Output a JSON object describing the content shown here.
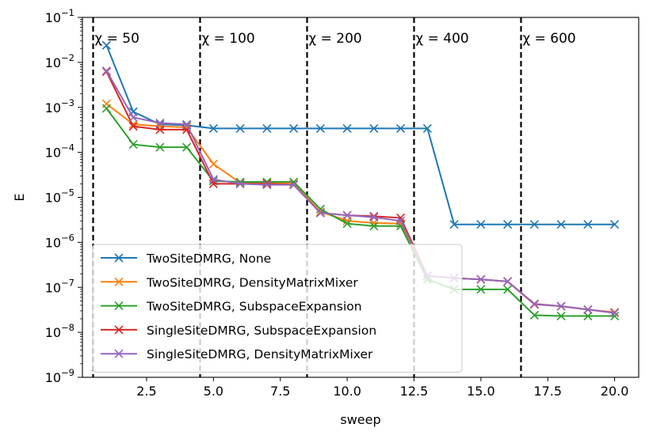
{
  "chart_data": {
    "type": "line",
    "xlabel": "sweep",
    "ylabel": "E",
    "yscale": "log",
    "xlim": [
      0.1,
      20.9
    ],
    "ylim": [
      1e-09,
      0.1
    ],
    "xticks": [
      2.5,
      5.0,
      7.5,
      10.0,
      12.5,
      15.0,
      17.5,
      20.0
    ],
    "xtick_labels": [
      "2.5",
      "5.0",
      "7.5",
      "10.0",
      "12.5",
      "15.0",
      "17.5",
      "20.0"
    ],
    "yticks": [
      1e-09,
      1e-08,
      1e-07,
      1e-06,
      1e-05,
      0.0001,
      0.001,
      0.01,
      0.1
    ],
    "ytick_exponents": [
      "−9",
      "−8",
      "−7",
      "−6",
      "−5",
      "−4",
      "−3",
      "−2",
      "−1"
    ],
    "ytick_base": "10",
    "grid": false,
    "legend_position": "lower-left",
    "vlines": [
      0.5,
      4.5,
      8.5,
      12.5,
      16.5
    ],
    "annotations": [
      {
        "text": "χ = 50",
        "x": 1.0
      },
      {
        "text": "χ = 100",
        "x": 5.0
      },
      {
        "text": "χ = 200",
        "x": 9.0
      },
      {
        "text": "χ = 400",
        "x": 13.0
      },
      {
        "text": "χ = 600",
        "x": 17.0
      }
    ],
    "x": [
      1,
      2,
      3,
      4,
      5,
      6,
      7,
      8,
      9,
      10,
      11,
      12,
      13,
      14,
      15,
      16,
      17,
      18,
      19,
      20
    ],
    "series": [
      {
        "name": "TwoSiteDMRG, None",
        "color": "#1f77b4",
        "values": [
          0.024,
          0.0008,
          0.00042,
          0.0004,
          0.00034,
          0.00034,
          0.00034,
          0.00034,
          0.00034,
          0.00034,
          0.00034,
          0.00034,
          0.00034,
          2.5e-06,
          2.5e-06,
          2.5e-06,
          2.5e-06,
          2.5e-06,
          2.5e-06,
          2.5e-06
        ]
      },
      {
        "name": "TwoSiteDMRG, DensityMatrixMixer",
        "color": "#ff7f0e",
        "values": [
          0.0012,
          0.00042,
          0.00038,
          0.00036,
          5.5e-05,
          2.1e-05,
          2.1e-05,
          2e-05,
          4.8e-06,
          3e-06,
          2.7e-06,
          2.6e-06,
          1.8e-07,
          1.6e-07,
          1.5e-07,
          1.35e-07,
          4.3e-08,
          3.8e-08,
          3.2e-08,
          2.8e-08
        ]
      },
      {
        "name": "TwoSiteDMRG, SubspaceExpansion",
        "color": "#2ca02c",
        "values": [
          0.00095,
          0.00015,
          0.00013,
          0.00013,
          2.3e-05,
          2.2e-05,
          2.2e-05,
          2.2e-05,
          5.5e-06,
          2.6e-06,
          2.3e-06,
          2.3e-06,
          1.5e-07,
          9e-08,
          9e-08,
          9e-08,
          2.4e-08,
          2.3e-08,
          2.3e-08,
          2.3e-08
        ]
      },
      {
        "name": "SingleSiteDMRG, SubspaceExpansion",
        "color": "#d62728",
        "values": [
          0.0062,
          0.00038,
          0.00032,
          0.00032,
          2e-05,
          2e-05,
          2e-05,
          1.9e-05,
          4.5e-06,
          4e-06,
          3.8e-06,
          3.5e-06,
          1.8e-07,
          1.6e-07,
          1.5e-07,
          1.35e-07,
          4.2e-08,
          3.8e-08,
          3.2e-08,
          2.7e-08
        ]
      },
      {
        "name": "SingleSiteDMRG, DensityMatrixMixer",
        "color": "#9467bd",
        "values": [
          0.0065,
          0.0006,
          0.00045,
          0.00042,
          2.5e-05,
          2e-05,
          1.9e-05,
          1.9e-05,
          4.5e-06,
          4e-06,
          3.6e-06,
          3e-06,
          1.8e-07,
          1.6e-07,
          1.5e-07,
          1.35e-07,
          4.3e-08,
          3.8e-08,
          3.2e-08,
          2.7e-08
        ]
      }
    ]
  }
}
